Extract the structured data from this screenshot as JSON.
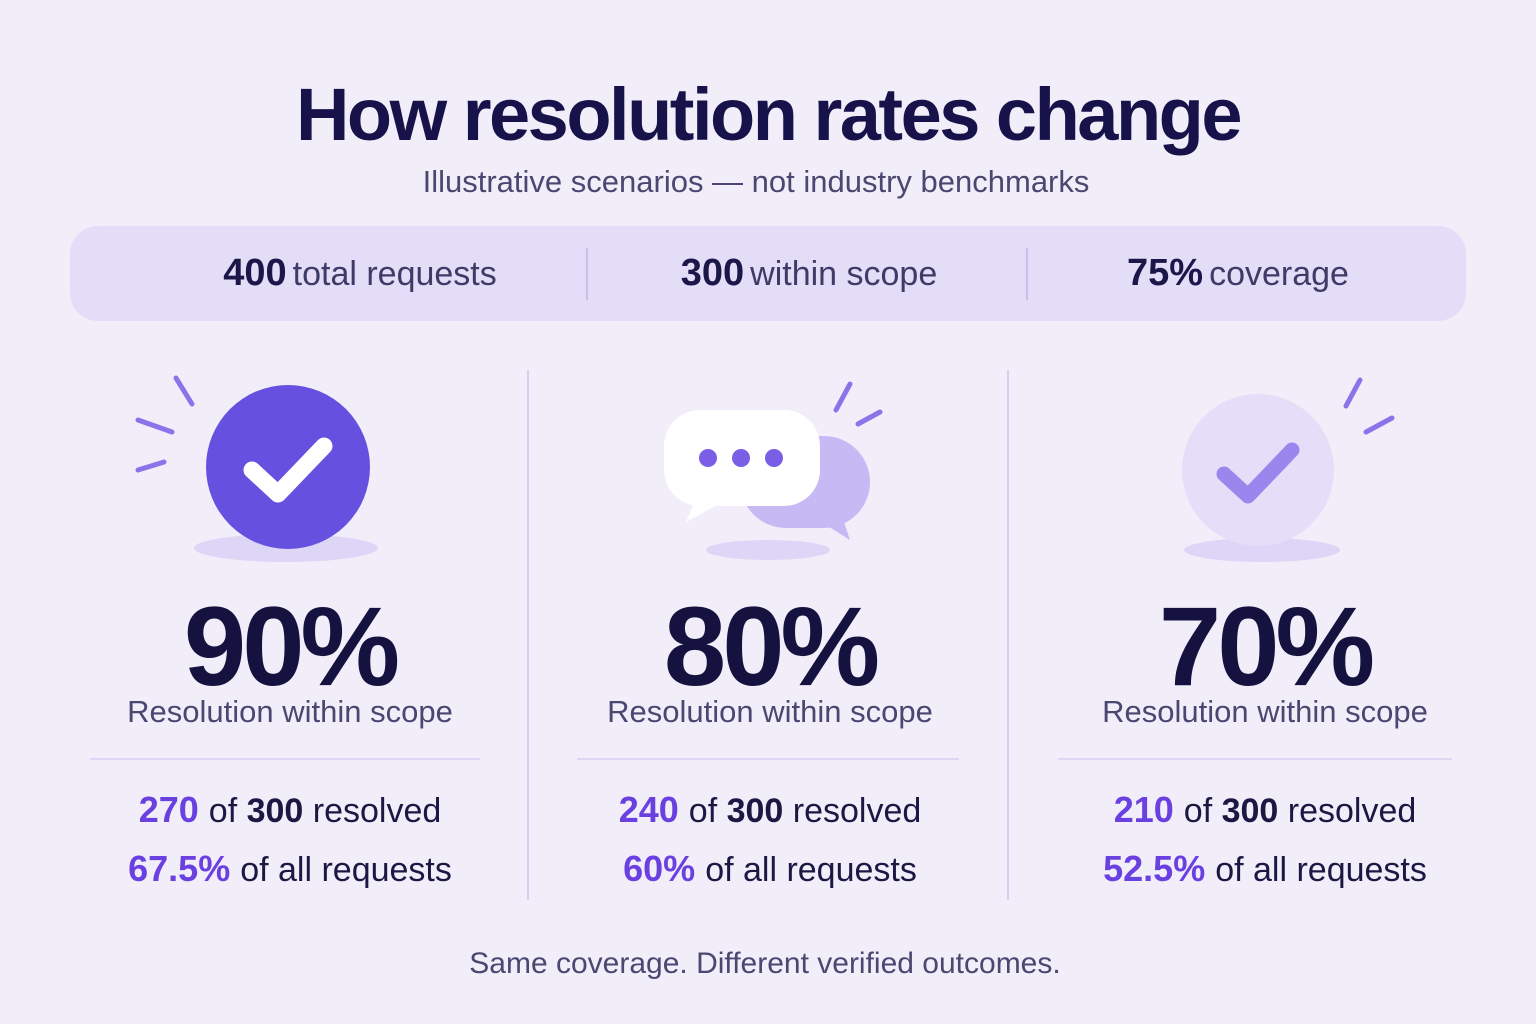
{
  "header": {
    "title": "How resolution rates change",
    "subtitle": "Illustrative scenarios — not industry benchmarks"
  },
  "stats": [
    {
      "value": "400",
      "label": "total requests"
    },
    {
      "value": "300",
      "label": "within scope"
    },
    {
      "value": "75%",
      "label": "coverage"
    }
  ],
  "scenarios": [
    {
      "icon": "check-circle-icon",
      "percent": "90%",
      "caption": "Resolution within scope",
      "resolved": "270",
      "resolved_text_of": "of",
      "resolved_total": "300",
      "resolved_text": "resolved",
      "share": "67.5%",
      "share_text": "of all requests"
    },
    {
      "icon": "chat-bubbles-icon",
      "percent": "80%",
      "caption": "Resolution within scope",
      "resolved": "240",
      "resolved_text_of": "of",
      "resolved_total": "300",
      "resolved_text": "resolved",
      "share": "60%",
      "share_text": "of all requests"
    },
    {
      "icon": "faded-check-circle-icon",
      "percent": "70%",
      "caption": "Resolution within scope",
      "resolved": "210",
      "resolved_text_of": "of",
      "resolved_total": "300",
      "resolved_text": "resolved",
      "share": "52.5%",
      "share_text": "of all requests"
    }
  ],
  "footer": {
    "text": "Same coverage. Different verified outcomes."
  },
  "colors": {
    "background": "#f1eefa",
    "accent": "#6a40e0",
    "primary_icon": "#6650e0",
    "text_dark": "#15123f",
    "stats_bar": "#e3ddf8"
  }
}
